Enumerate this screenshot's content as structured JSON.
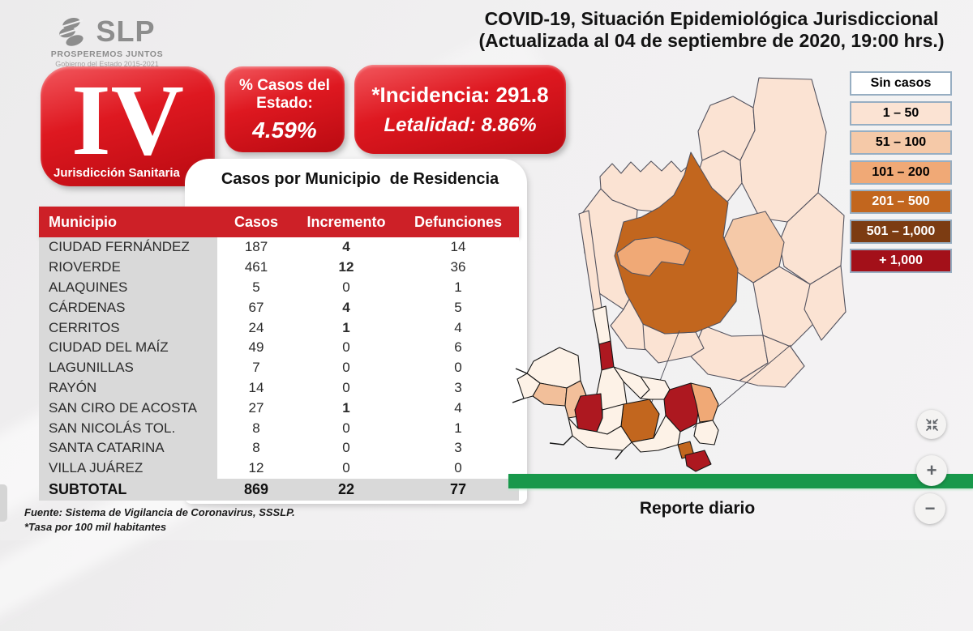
{
  "header": {
    "logo": {
      "brand": "SLP",
      "tagline": "PROSPEREMOS JUNTOS",
      "government": "Gobierno del Estado 2015-2021"
    },
    "title_line1": "COVID-19, Situación Epidemiológica Jurisdiccional",
    "title_line2": "(Actualizada al 04 de septiembre de 2020, 19:00 hrs.)"
  },
  "badges": {
    "jurisdiction_number": "IV",
    "jurisdiction_label": "Jurisdicción Sanitaria",
    "state_cases_label_line1": "% Casos del",
    "state_cases_label_line2": "Estado:",
    "state_cases_value": "4.59%",
    "incidence_label": "*Incidencia: 291.8",
    "lethality_label": "Letalidad: 8.86%"
  },
  "table": {
    "title": "Casos por Municipio  de Residencia",
    "columns": [
      "Municipio",
      "Casos",
      "Incremento",
      "Defunciones"
    ],
    "rows": [
      {
        "municipio": "CIUDAD FERNÁNDEZ",
        "casos": "187",
        "incremento": "4",
        "defunciones": "14"
      },
      {
        "municipio": "RIOVERDE",
        "casos": "461",
        "incremento": "12",
        "defunciones": "36"
      },
      {
        "municipio": "ALAQUINES",
        "casos": "5",
        "incremento": "0",
        "defunciones": "1"
      },
      {
        "municipio": "CÁRDENAS",
        "casos": "67",
        "incremento": "4",
        "defunciones": "5"
      },
      {
        "municipio": "CERRITOS",
        "casos": "24",
        "incremento": "1",
        "defunciones": "4"
      },
      {
        "municipio": "CIUDAD DEL MAÍZ",
        "casos": "49",
        "incremento": "0",
        "defunciones": "6"
      },
      {
        "municipio": "LAGUNILLAS",
        "casos": "7",
        "incremento": "0",
        "defunciones": "0"
      },
      {
        "municipio": "RAYÓN",
        "casos": "14",
        "incremento": "0",
        "defunciones": "3"
      },
      {
        "municipio": "SAN CIRO DE ACOSTA",
        "casos": "27",
        "incremento": "1",
        "defunciones": "4"
      },
      {
        "municipio": "SAN NICOLÁS TOL.",
        "casos": "8",
        "incremento": "0",
        "defunciones": "1"
      },
      {
        "municipio": "SANTA CATARINA",
        "casos": "8",
        "incremento": "0",
        "defunciones": "3"
      },
      {
        "municipio": "VILLA JUÁREZ",
        "casos": "12",
        "incremento": "0",
        "defunciones": "0"
      }
    ],
    "subtotal": {
      "label": "SUBTOTAL",
      "casos": "869",
      "incremento": "22",
      "defunciones": "77"
    }
  },
  "legend": {
    "items": [
      {
        "label": "Sin casos",
        "color": "#ffffff",
        "text_color": "#000000"
      },
      {
        "label": "1 – 50",
        "color": "#fbe3d3",
        "text_color": "#000000"
      },
      {
        "label": "51 – 100",
        "color": "#f5c9a8",
        "text_color": "#000000"
      },
      {
        "label": "101 – 200",
        "color": "#f0a976",
        "text_color": "#000000"
      },
      {
        "label": "201 – 500",
        "color": "#c2661e",
        "text_color": "#ffffff"
      },
      {
        "label": "501 – 1,000",
        "color": "#7c3c12",
        "text_color": "#ffffff"
      },
      {
        "label": "+ 1,000",
        "color": "#a31019",
        "text_color": "#ffffff"
      }
    ]
  },
  "footer": {
    "source": "Fuente: Sistema de Vigilancia de Coronavirus, SSSLP.",
    "note": "*Tasa por 100 mil habitantes",
    "report_label": "Reporte diario"
  },
  "viewer": {
    "zoom_in": "+",
    "zoom_out": "−"
  },
  "colors": {
    "accent_red": "#cd2027",
    "green_bar": "#18984b"
  }
}
